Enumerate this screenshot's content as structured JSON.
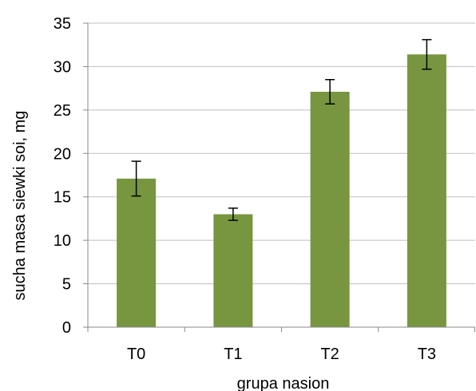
{
  "chart_data": {
    "type": "bar",
    "title": "",
    "xlabel": "grupa nasion",
    "ylabel": "sucha masa siewki soi, mg",
    "categories": [
      "T0",
      "T1",
      "T2",
      "T3"
    ],
    "values": [
      17.1,
      13.0,
      27.1,
      31.4
    ],
    "error_low": [
      15.1,
      12.3,
      25.7,
      29.7
    ],
    "error_high": [
      19.1,
      13.7,
      28.5,
      33.1
    ],
    "ylim": [
      0,
      35
    ],
    "yticks": [
      0,
      5,
      10,
      15,
      20,
      25,
      30,
      35
    ],
    "ytick_labels": [
      "0",
      "5",
      "10",
      "15",
      "20",
      "25",
      "30",
      "35"
    ],
    "grid": "horizontal",
    "legend": "none",
    "bar_color": "#77963f",
    "grid_color": "#bfbfbf",
    "axis_color": "#888888",
    "errorbar_color": "#000000"
  }
}
